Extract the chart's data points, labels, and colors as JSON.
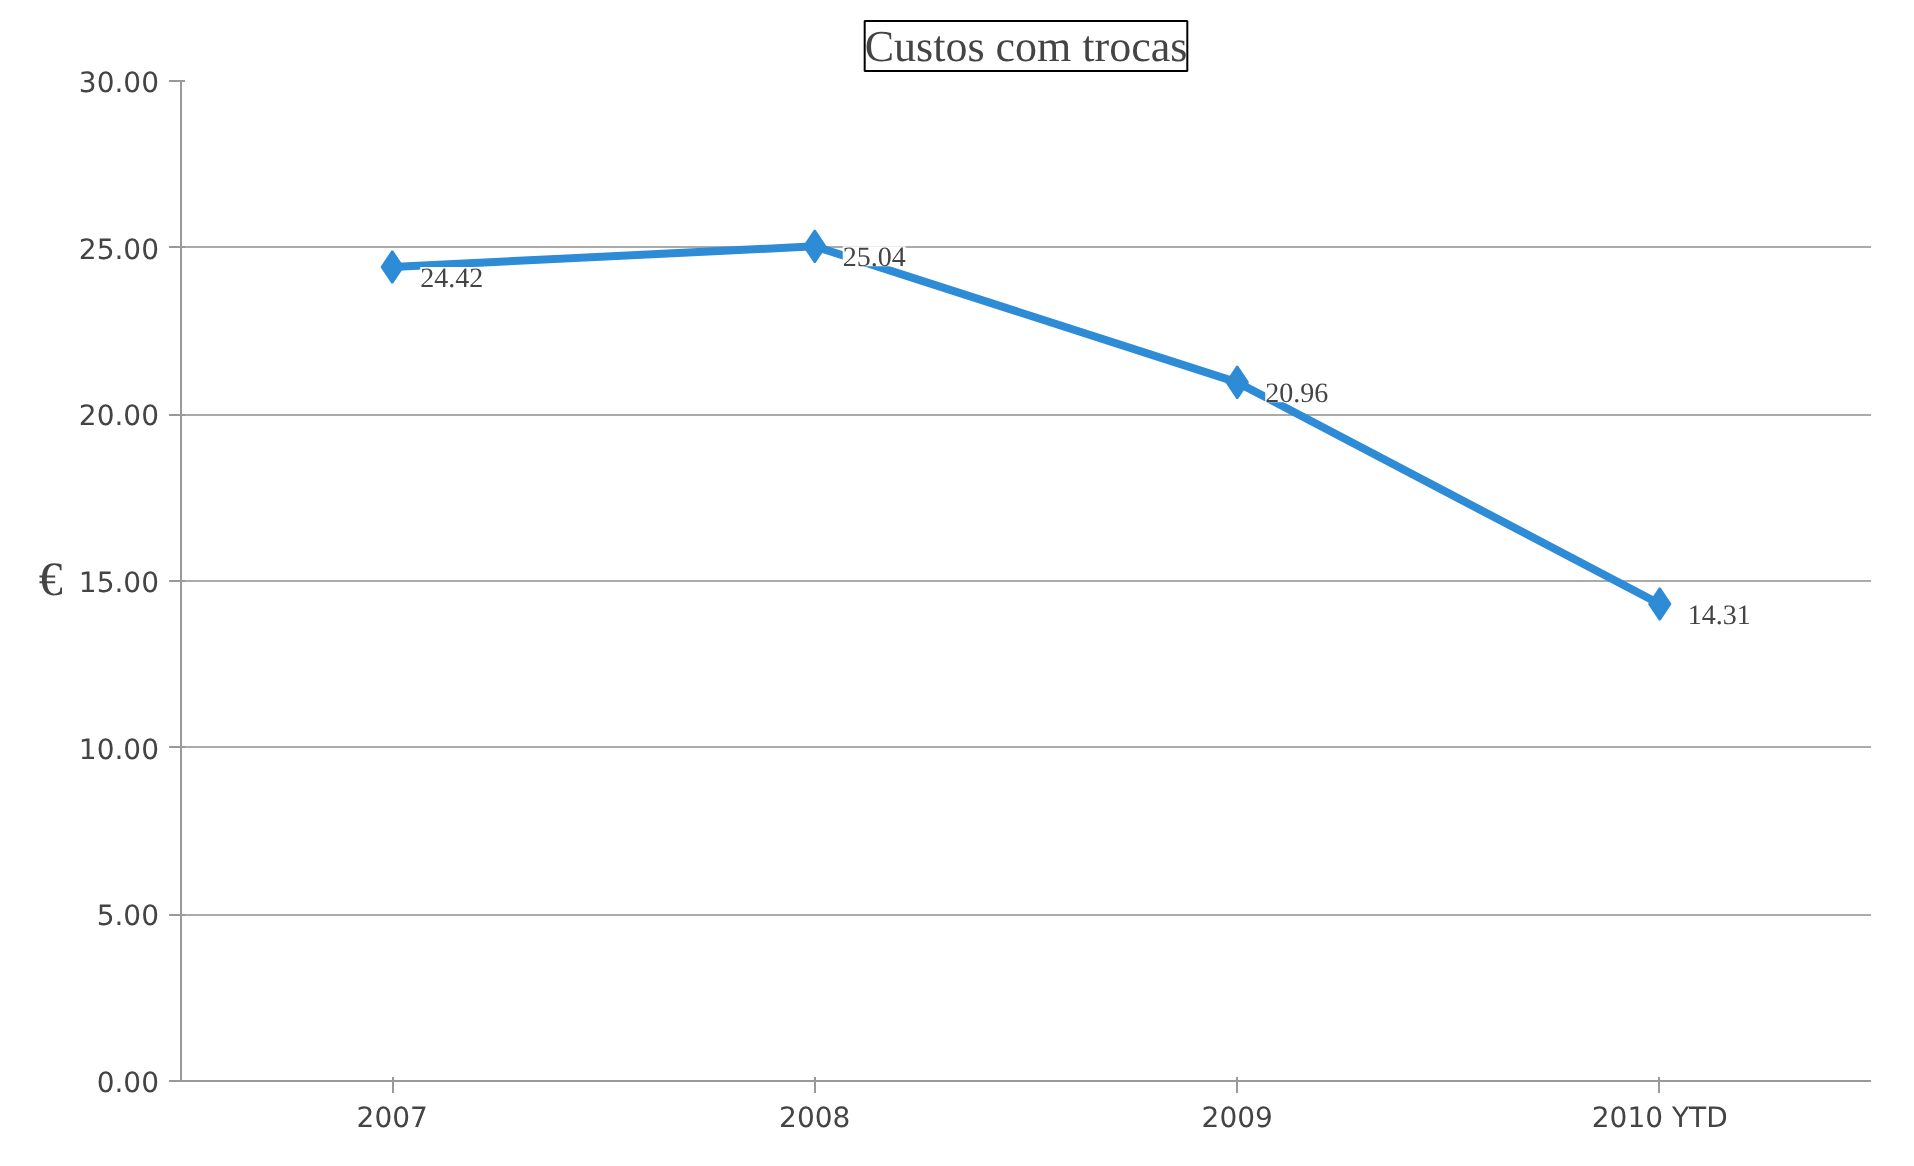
{
  "chart_data": {
    "type": "line",
    "title": "Custos com trocas",
    "ylabel": "€",
    "categories": [
      "2007",
      "2008",
      "2009",
      "2010 YTD"
    ],
    "series": [
      {
        "color": "#2e8bd6",
        "values": [
          24.42,
          25.04,
          20.96,
          14.31
        ]
      }
    ],
    "ylim": [
      0,
      30
    ],
    "yticks": [
      {
        "value": 0,
        "label": "0.00"
      },
      {
        "value": 5,
        "label": "5.00"
      },
      {
        "value": 10,
        "label": "10.00"
      },
      {
        "value": 15,
        "label": "15.00"
      },
      {
        "value": 20,
        "label": "20.00"
      },
      {
        "value": 25,
        "label": "25.00"
      },
      {
        "value": 30,
        "label": "30.00"
      }
    ],
    "grid": "y",
    "marker": "diamond",
    "line_style": "solid",
    "data_labels": true
  }
}
